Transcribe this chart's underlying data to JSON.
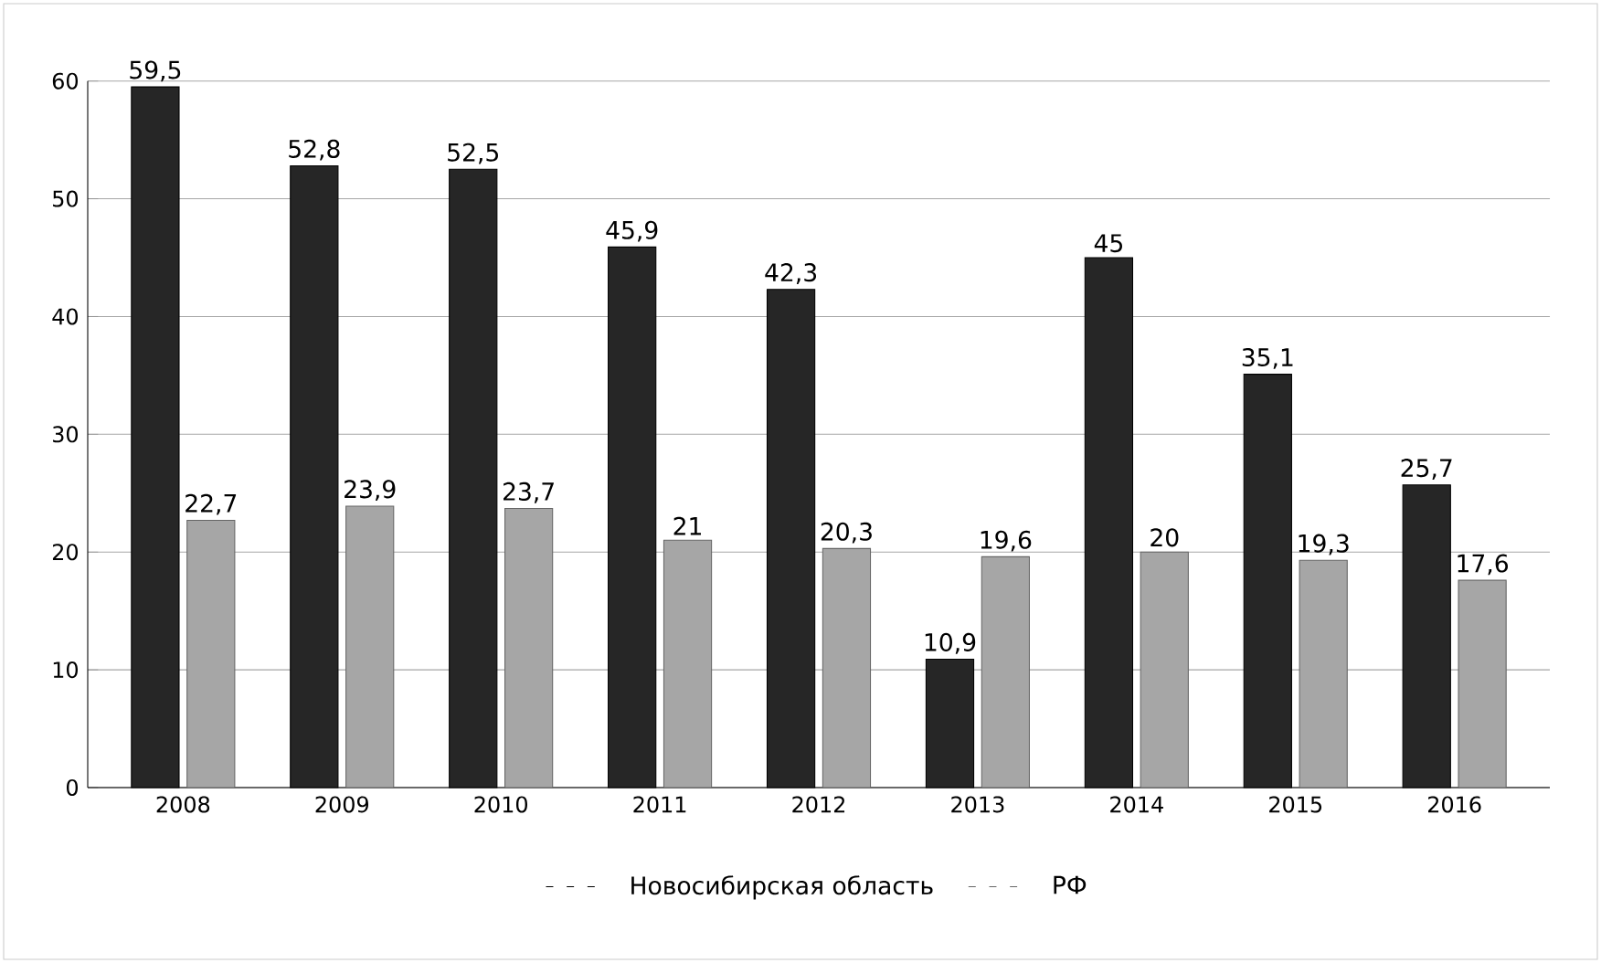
{
  "chart_data": {
    "type": "bar",
    "categories": [
      "2008",
      "2009",
      "2010",
      "2011",
      "2012",
      "2013",
      "2014",
      "2015",
      "2016"
    ],
    "series": [
      {
        "name": "Новосибирская область",
        "color": "#262626",
        "values": [
          59.5,
          52.8,
          52.5,
          45.9,
          42.3,
          10.9,
          45,
          35.1,
          25.7
        ],
        "value_labels": [
          "59,5",
          "52,8",
          "52,5",
          "45,9",
          "42,3",
          "10,9",
          "45",
          "35,1",
          "25,7"
        ]
      },
      {
        "name": "РФ",
        "color": "#a6a6a6",
        "values": [
          22.7,
          23.9,
          23.7,
          21,
          20.3,
          19.6,
          20,
          19.3,
          17.6
        ],
        "value_labels": [
          "22,7",
          "23,9",
          "23,7",
          "21",
          "20,3",
          "19,6",
          "20",
          "19,3",
          "17,6"
        ]
      }
    ],
    "ylim": [
      0,
      60
    ],
    "yticks": [
      0,
      10,
      20,
      30,
      40,
      50,
      60
    ],
    "grid": "y",
    "legend": "bottom"
  }
}
